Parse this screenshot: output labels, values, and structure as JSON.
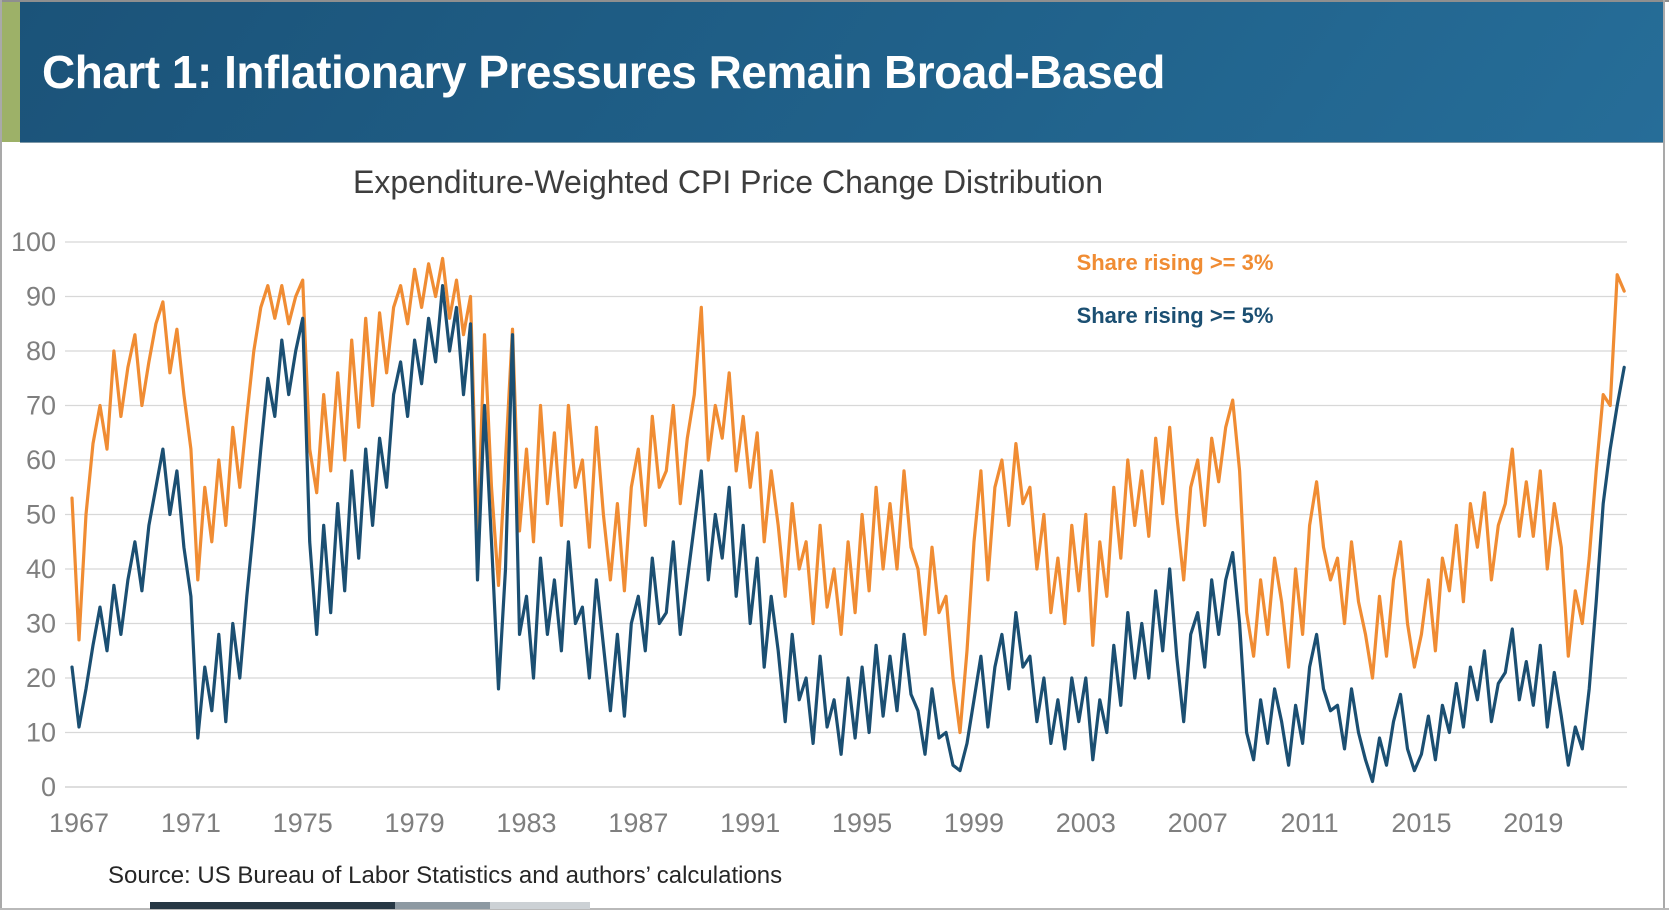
{
  "header": {
    "title": "Chart 1: Inflationary Pressures Remain Broad-Based",
    "background_color": "#20618a",
    "accent_stripe_color": "#9DB168"
  },
  "source": {
    "text": "Source: US Bureau of Labor Statistics and authors’ calculations"
  },
  "chart_data": {
    "type": "line",
    "title": "Expenditure-Weighted CPI Price Change Distribution",
    "xlabel": "",
    "ylabel": "",
    "xlim": [
      1966.5,
      2022.35
    ],
    "ylim": [
      0,
      100
    ],
    "grid": "horizontal",
    "legend_position": "top-right",
    "x_ticks": [
      1967,
      1971,
      1975,
      1979,
      1983,
      1987,
      1991,
      1995,
      1999,
      2003,
      2007,
      2011,
      2015,
      2019
    ],
    "y_ticks": [
      0,
      10,
      20,
      30,
      40,
      50,
      60,
      70,
      80,
      90,
      100
    ],
    "x_start": 1966.75,
    "x_step": 0.25,
    "series": [
      {
        "name": "Share rising >= 3%",
        "color": "#F08C33",
        "values": [
          53,
          27,
          50,
          63,
          70,
          62,
          80,
          68,
          77,
          83,
          70,
          78,
          85,
          89,
          76,
          84,
          72,
          62,
          38,
          55,
          45,
          60,
          48,
          66,
          55,
          68,
          80,
          88,
          92,
          86,
          92,
          85,
          90,
          93,
          62,
          54,
          72,
          58,
          76,
          60,
          82,
          66,
          86,
          70,
          87,
          76,
          88,
          92,
          85,
          95,
          88,
          96,
          90,
          97,
          86,
          93,
          83,
          90,
          45,
          83,
          55,
          37,
          60,
          84,
          47,
          62,
          45,
          70,
          52,
          65,
          48,
          70,
          55,
          60,
          44,
          66,
          50,
          38,
          52,
          36,
          55,
          62,
          48,
          68,
          55,
          58,
          70,
          52,
          64,
          72,
          88,
          60,
          70,
          64,
          76,
          58,
          68,
          55,
          65,
          45,
          58,
          48,
          35,
          52,
          40,
          45,
          30,
          48,
          33,
          40,
          28,
          45,
          32,
          50,
          36,
          55,
          40,
          52,
          40,
          58,
          44,
          40,
          28,
          44,
          32,
          35,
          20,
          10,
          25,
          45,
          58,
          38,
          55,
          60,
          48,
          63,
          52,
          55,
          40,
          50,
          32,
          42,
          30,
          48,
          36,
          50,
          26,
          45,
          35,
          55,
          42,
          60,
          48,
          58,
          46,
          64,
          52,
          66,
          50,
          38,
          55,
          60,
          48,
          64,
          56,
          66,
          71,
          58,
          32,
          24,
          38,
          28,
          42,
          34,
          22,
          40,
          28,
          48,
          56,
          44,
          38,
          42,
          30,
          45,
          34,
          28,
          20,
          35,
          24,
          38,
          45,
          30,
          22,
          28,
          38,
          25,
          42,
          36,
          48,
          34,
          52,
          44,
          54,
          38,
          48,
          52,
          62,
          46,
          56,
          46,
          58,
          40,
          52,
          44,
          24,
          36,
          30,
          42,
          58,
          72,
          70,
          94,
          91
        ]
      },
      {
        "name": "Share rising >= 5%",
        "color": "#1B4F72",
        "values": [
          22,
          11,
          18,
          26,
          33,
          25,
          37,
          28,
          38,
          45,
          36,
          48,
          55,
          62,
          50,
          58,
          44,
          35,
          9,
          22,
          14,
          28,
          12,
          30,
          20,
          35,
          48,
          62,
          75,
          68,
          82,
          72,
          80,
          86,
          45,
          28,
          48,
          32,
          52,
          36,
          58,
          42,
          62,
          48,
          64,
          55,
          72,
          78,
          68,
          82,
          74,
          86,
          78,
          92,
          80,
          88,
          72,
          85,
          38,
          70,
          45,
          18,
          40,
          83,
          28,
          35,
          20,
          42,
          28,
          38,
          25,
          45,
          30,
          33,
          20,
          38,
          26,
          14,
          28,
          13,
          30,
          35,
          25,
          42,
          30,
          32,
          45,
          28,
          38,
          48,
          58,
          38,
          50,
          42,
          55,
          35,
          48,
          30,
          42,
          22,
          35,
          25,
          12,
          28,
          16,
          20,
          8,
          24,
          11,
          16,
          6,
          20,
          9,
          22,
          10,
          26,
          13,
          24,
          14,
          28,
          17,
          14,
          6,
          18,
          9,
          10,
          4,
          3,
          8,
          16,
          24,
          11,
          22,
          28,
          18,
          32,
          22,
          24,
          12,
          20,
          8,
          16,
          7,
          20,
          12,
          20,
          5,
          16,
          10,
          26,
          15,
          32,
          20,
          30,
          20,
          36,
          25,
          40,
          24,
          12,
          28,
          32,
          22,
          38,
          28,
          38,
          43,
          30,
          10,
          5,
          16,
          8,
          18,
          12,
          4,
          15,
          8,
          22,
          28,
          18,
          14,
          15,
          7,
          18,
          10,
          5,
          1,
          9,
          4,
          12,
          17,
          7,
          3,
          6,
          13,
          5,
          15,
          10,
          19,
          11,
          22,
          16,
          25,
          12,
          19,
          21,
          29,
          16,
          23,
          15,
          26,
          11,
          21,
          13,
          4,
          11,
          7,
          18,
          34,
          52,
          62,
          70,
          77
        ]
      }
    ]
  }
}
